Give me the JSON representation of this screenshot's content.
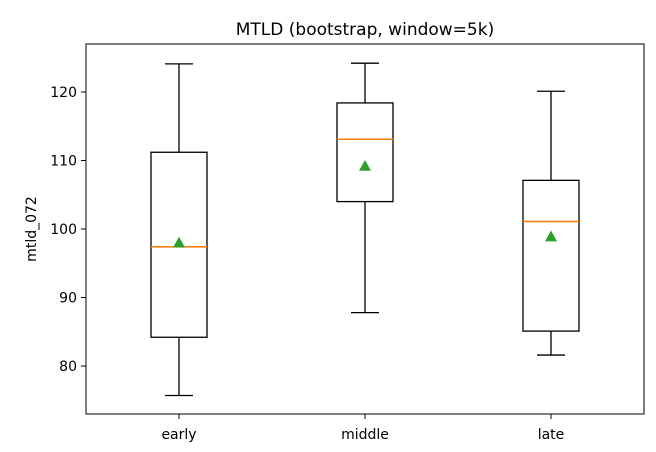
{
  "chart_data": {
    "type": "box",
    "title": "MTLD (bootstrap, window=5k)",
    "xlabel": "",
    "ylabel": "mtld_072",
    "categories": [
      "early",
      "middle",
      "late"
    ],
    "ylim": [
      73,
      127
    ],
    "yticks": [
      80,
      90,
      100,
      110,
      120
    ],
    "grid": false,
    "boxes": [
      {
        "name": "early",
        "whisker_low": 75.7,
        "q1": 84.2,
        "median": 97.4,
        "q3": 111.2,
        "whisker_high": 124.1,
        "mean": 98.0
      },
      {
        "name": "middle",
        "whisker_low": 87.8,
        "q1": 104.0,
        "median": 113.1,
        "q3": 118.4,
        "whisker_high": 124.2,
        "mean": 109.2
      },
      {
        "name": "late",
        "whisker_low": 81.6,
        "q1": 85.1,
        "median": 101.1,
        "q3": 107.1,
        "whisker_high": 120.1,
        "mean": 98.9
      }
    ],
    "colors": {
      "median": "#ff7f0e",
      "mean": "#2ca02c",
      "box": "#000000"
    }
  }
}
